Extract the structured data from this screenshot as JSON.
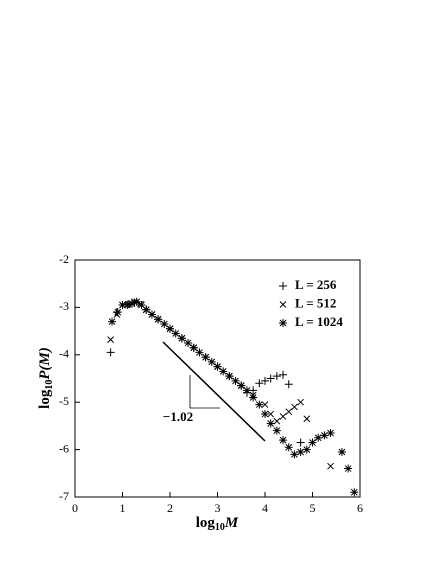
{
  "chart_data": {
    "type": "scatter",
    "x_label_parts": [
      "log",
      "10",
      "M"
    ],
    "y_label_parts": [
      "log",
      "10",
      "P(M)"
    ],
    "xlim": [
      0,
      6
    ],
    "xticks": [
      0,
      1,
      2,
      3,
      4,
      5,
      6
    ],
    "ylim": [
      -7,
      -2
    ],
    "yticks": [
      -2,
      -3,
      -4,
      -5,
      -6,
      -7
    ],
    "annotation": "−1.02",
    "legend": "upper right",
    "series": [
      {
        "name": "L = 256",
        "color": "#000000",
        "marker": "plus",
        "x": [
          0.75,
          0.88,
          1.0,
          1.12,
          1.25,
          1.5,
          1.75,
          2.0,
          2.25,
          2.5,
          2.75,
          3.0,
          3.25,
          3.5,
          3.62,
          3.75,
          3.88,
          4.0,
          4.12,
          4.25,
          4.38,
          4.5,
          4.75
        ],
        "values": [
          -3.95,
          -3.1,
          -2.95,
          -2.93,
          -2.9,
          -3.05,
          -3.25,
          -3.45,
          -3.65,
          -3.85,
          -4.05,
          -4.25,
          -4.45,
          -4.65,
          -4.8,
          -4.75,
          -4.6,
          -4.55,
          -4.5,
          -4.45,
          -4.42,
          -4.62,
          -5.85
        ]
      },
      {
        "name": "L = 512",
        "color": "#000000",
        "marker": "x",
        "x": [
          0.75,
          0.88,
          1.0,
          1.12,
          1.25,
          1.38,
          1.5,
          1.62,
          1.75,
          2.0,
          2.25,
          2.5,
          2.75,
          3.0,
          3.25,
          3.5,
          3.75,
          4.0,
          4.12,
          4.25,
          4.38,
          4.5,
          4.62,
          4.75,
          4.88,
          5.38
        ],
        "values": [
          -3.68,
          -3.15,
          -2.95,
          -2.93,
          -2.88,
          -2.93,
          -3.05,
          -3.15,
          -3.25,
          -3.45,
          -3.65,
          -3.85,
          -4.05,
          -4.25,
          -4.45,
          -4.65,
          -4.85,
          -5.05,
          -5.25,
          -5.4,
          -5.3,
          -5.2,
          -5.1,
          -5.0,
          -5.35,
          -6.35
        ]
      },
      {
        "name": "L = 1024",
        "color": "#000000",
        "marker": "star",
        "x": [
          0.78,
          0.9,
          1.0,
          1.1,
          1.2,
          1.3,
          1.4,
          1.5,
          1.62,
          1.75,
          1.88,
          2.0,
          2.12,
          2.25,
          2.38,
          2.5,
          2.62,
          2.75,
          2.88,
          3.0,
          3.12,
          3.25,
          3.38,
          3.5,
          3.62,
          3.75,
          3.88,
          4.0,
          4.12,
          4.25,
          4.38,
          4.5,
          4.62,
          4.75,
          4.88,
          5.0,
          5.12,
          5.25,
          5.38,
          5.62,
          5.75,
          5.88
        ],
        "values": [
          -3.3,
          -3.1,
          -2.95,
          -2.95,
          -2.92,
          -2.88,
          -2.95,
          -3.05,
          -3.15,
          -3.25,
          -3.35,
          -3.45,
          -3.55,
          -3.65,
          -3.75,
          -3.85,
          -3.95,
          -4.05,
          -4.15,
          -4.25,
          -4.35,
          -4.45,
          -4.55,
          -4.65,
          -4.75,
          -4.9,
          -5.05,
          -5.25,
          -5.45,
          -5.6,
          -5.8,
          -5.95,
          -6.1,
          -6.05,
          -6.0,
          -5.85,
          -5.75,
          -5.7,
          -5.65,
          -6.05,
          -6.4,
          -6.9
        ]
      }
    ]
  }
}
